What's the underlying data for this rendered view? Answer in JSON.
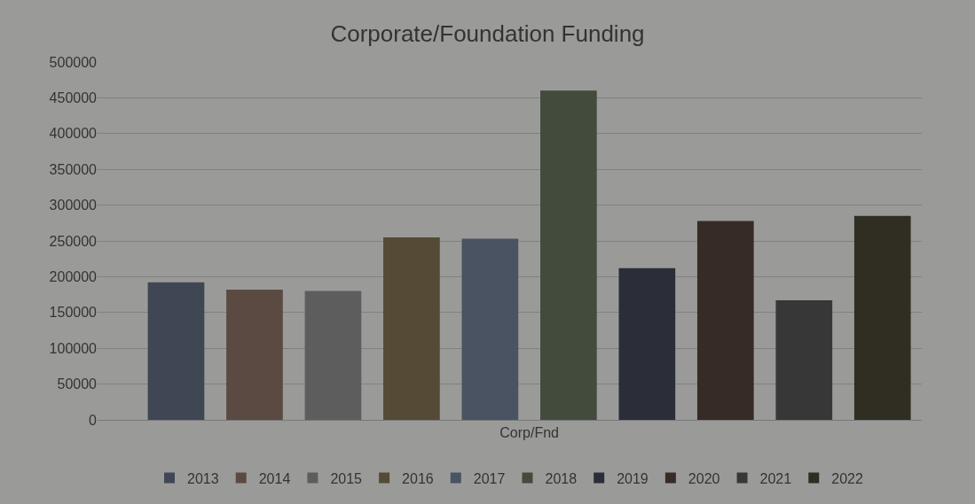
{
  "chart_data": {
    "type": "bar",
    "title": "Corporate/Foundation Funding",
    "categories": [
      "Corp/Fnd"
    ],
    "series": [
      {
        "name": "2013",
        "color": "#3f4654",
        "values": [
          192000
        ]
      },
      {
        "name": "2014",
        "color": "#5a4a42",
        "values": [
          182000
        ]
      },
      {
        "name": "2015",
        "color": "#5d5d5d",
        "values": [
          180000
        ]
      },
      {
        "name": "2016",
        "color": "#544a35",
        "values": [
          255000
        ]
      },
      {
        "name": "2017",
        "color": "#4a5362",
        "values": [
          253000
        ]
      },
      {
        "name": "2018",
        "color": "#434b3c",
        "values": [
          460000
        ]
      },
      {
        "name": "2019",
        "color": "#2b2e38",
        "values": [
          212000
        ]
      },
      {
        "name": "2020",
        "color": "#372b26",
        "values": [
          278000
        ]
      },
      {
        "name": "2021",
        "color": "#373737",
        "values": [
          167000
        ]
      },
      {
        "name": "2022",
        "color": "#302e22",
        "values": [
          285000
        ]
      }
    ],
    "ylim": [
      0,
      500000
    ],
    "yticks": [
      0,
      50000,
      100000,
      150000,
      200000,
      250000,
      300000,
      350000,
      400000,
      450000,
      500000
    ],
    "grid": "y",
    "legend": "bottom"
  }
}
